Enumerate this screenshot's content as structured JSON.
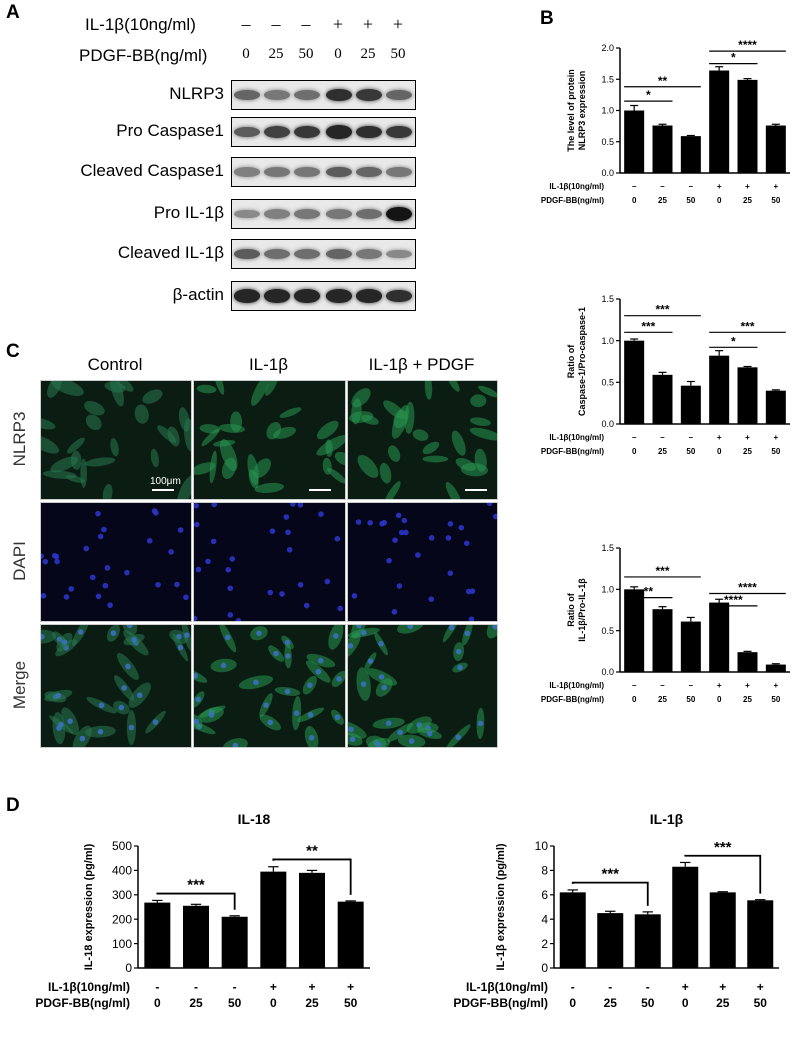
{
  "panelA": {
    "letter": "A",
    "il1b_label": "IL-1β(10ng/ml)",
    "pdgf_label": "PDGF-BB(ng/ml)",
    "il1b_signs": [
      "–",
      "–",
      "–",
      "+",
      "+",
      "+"
    ],
    "pdgf_doses": [
      "0",
      "25",
      "50",
      "0",
      "25",
      "50"
    ],
    "blots": [
      {
        "label": "NLRP3",
        "intensity": [
          0.55,
          0.45,
          0.5,
          0.85,
          0.8,
          0.55
        ]
      },
      {
        "label": "Pro Caspase1",
        "intensity": [
          0.6,
          0.75,
          0.8,
          0.9,
          0.85,
          0.8
        ]
      },
      {
        "label": "Cleaved Caspase1",
        "intensity": [
          0.4,
          0.45,
          0.45,
          0.6,
          0.55,
          0.45
        ]
      },
      {
        "label": "Pro IL-1β",
        "intensity": [
          0.35,
          0.4,
          0.45,
          0.45,
          0.5,
          1.0
        ]
      },
      {
        "label": "Cleaved IL-1β",
        "intensity": [
          0.6,
          0.5,
          0.5,
          0.55,
          0.45,
          0.35
        ]
      },
      {
        "label": "β-actin",
        "intensity": [
          0.9,
          0.9,
          0.9,
          0.9,
          0.9,
          0.85
        ]
      }
    ]
  },
  "panelB": {
    "letter": "B"
  },
  "panelC": {
    "letter": "C",
    "columns": [
      "Control",
      "IL-1β",
      "IL-1β + PDGF"
    ],
    "rows": [
      "NLRP3",
      "DAPI",
      "Merge"
    ],
    "scale_label": "100μm"
  },
  "panelD": {
    "letter": "D"
  },
  "chart_data": [
    {
      "type": "bar",
      "ylabel": "The level of protein NLRP3 expression",
      "ylabel_lines": [
        "The level of protein",
        "NLRP3 expression"
      ],
      "ylim": [
        0,
        2.0
      ],
      "yticks": [
        "0.0",
        "0.5",
        "1.0",
        "1.5",
        "2.0"
      ],
      "values": [
        1.0,
        0.76,
        0.59,
        1.64,
        1.49,
        0.76
      ],
      "errors": [
        0.08,
        0.02,
        0.01,
        0.06,
        0.02,
        0.02
      ],
      "row1_label": "IL-1β(10ng/ml)",
      "row2_label": "PDGF-BB(ng/ml)",
      "row1": [
        "–",
        "–",
        "–",
        "+",
        "+",
        "+"
      ],
      "row2": [
        "0",
        "25",
        "50",
        "0",
        "25",
        "50"
      ],
      "significance": [
        {
          "from": 0,
          "to": 1,
          "y": 1.15,
          "label": "*"
        },
        {
          "from": 0,
          "to": 2,
          "y": 1.38,
          "label": "**"
        },
        {
          "from": 3,
          "to": 4,
          "y": 1.75,
          "label": "*"
        },
        {
          "from": 3,
          "to": 5,
          "y": 1.95,
          "label": "****"
        }
      ]
    },
    {
      "type": "bar",
      "ylabel": "Ratio of Caspase-1/Pro-caspase-1",
      "ylabel_lines": [
        "Ratio of",
        "Caspase-1/Pro-caspase-1"
      ],
      "ylim": [
        0,
        1.5
      ],
      "yticks": [
        "0.0",
        "0.5",
        "1.0",
        "1.5"
      ],
      "values": [
        1.0,
        0.59,
        0.46,
        0.82,
        0.68,
        0.4
      ],
      "errors": [
        0.02,
        0.03,
        0.05,
        0.06,
        0.01,
        0.01
      ],
      "row1_label": "IL-1β(10ng/ml)",
      "row2_label": "PDGF-BB(ng/ml)",
      "row1": [
        "–",
        "–",
        "–",
        "+",
        "+",
        "+"
      ],
      "row2": [
        "0",
        "25",
        "50",
        "0",
        "25",
        "50"
      ],
      "significance": [
        {
          "from": 0,
          "to": 1,
          "y": 1.1,
          "label": "***"
        },
        {
          "from": 0,
          "to": 2,
          "y": 1.3,
          "label": "***"
        },
        {
          "from": 3,
          "to": 4,
          "y": 0.92,
          "label": "*"
        },
        {
          "from": 3,
          "to": 5,
          "y": 1.1,
          "label": "***"
        }
      ]
    },
    {
      "type": "bar",
      "ylabel": "Ratio of IL-1β/Pro-IL-1β",
      "ylabel_lines": [
        "Ratio of",
        "IL-1β/Pro-IL-1β"
      ],
      "ylim": [
        0,
        1.5
      ],
      "yticks": [
        "0.0",
        "0.5",
        "1.0",
        "1.5"
      ],
      "values": [
        1.0,
        0.76,
        0.61,
        0.84,
        0.24,
        0.09
      ],
      "errors": [
        0.03,
        0.03,
        0.05,
        0.04,
        0.01,
        0.01
      ],
      "row1_label": "IL-1β(10ng/ml)",
      "row2_label": "PDGF-BB(ng/ml)",
      "row1": [
        "–",
        "–",
        "–",
        "+",
        "+",
        "+"
      ],
      "row2": [
        "0",
        "25",
        "50",
        "0",
        "25",
        "50"
      ],
      "significance": [
        {
          "from": 0,
          "to": 1,
          "y": 0.9,
          "label": "**"
        },
        {
          "from": 0,
          "to": 2,
          "y": 1.15,
          "label": "***"
        },
        {
          "from": 3,
          "to": 4,
          "y": 0.8,
          "label": "****"
        },
        {
          "from": 3,
          "to": 5,
          "y": 0.95,
          "label": "****"
        }
      ]
    },
    {
      "type": "bar",
      "title": "IL-18",
      "ylabel": "IL-18 expression (pg/ml)",
      "ylim": [
        0,
        500
      ],
      "yticks": [
        "0",
        "100",
        "200",
        "300",
        "400",
        "500"
      ],
      "values": [
        268,
        255,
        210,
        395,
        390,
        272
      ],
      "errors": [
        9,
        6,
        4,
        20,
        10,
        3
      ],
      "row1_label": "IL-1β(10ng/ml)",
      "row2_label": "PDGF-BB(ng/ml)",
      "row1": [
        "-",
        "-",
        "-",
        "+",
        "+",
        "+"
      ],
      "row2": [
        "0",
        "25",
        "50",
        "0",
        "25",
        "50"
      ],
      "brackets": [
        {
          "from": 0,
          "to": 2,
          "y": 305,
          "label": "***"
        },
        {
          "from": 3,
          "to": 5,
          "y": 445,
          "label": "**"
        }
      ]
    },
    {
      "type": "bar",
      "title": "IL-1β",
      "ylabel": "IL-1β expression (pg/ml)",
      "ylim": [
        0,
        10
      ],
      "yticks": [
        "0",
        "2",
        "4",
        "6",
        "8",
        "10"
      ],
      "values": [
        6.2,
        4.5,
        4.4,
        8.3,
        6.2,
        5.55
      ],
      "errors": [
        0.2,
        0.15,
        0.2,
        0.35,
        0.05,
        0.05
      ],
      "row1_label": "IL-1β(10ng/ml)",
      "row2_label": "PDGF-BB(ng/ml)",
      "row1": [
        "-",
        "-",
        "-",
        "+",
        "+",
        "+"
      ],
      "row2": [
        "0",
        "25",
        "50",
        "0",
        "25",
        "50"
      ],
      "brackets": [
        {
          "from": 0,
          "to": 2,
          "y": 7.0,
          "label": "***"
        },
        {
          "from": 3,
          "to": 5,
          "y": 9.2,
          "label": "***"
        }
      ]
    }
  ]
}
